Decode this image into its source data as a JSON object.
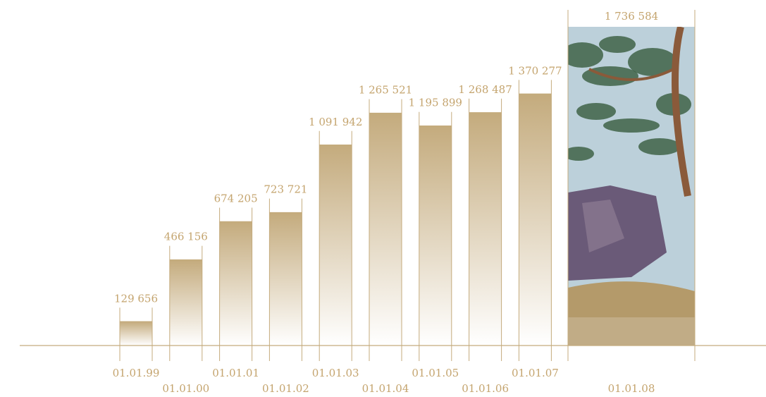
{
  "chart_data": {
    "type": "bar",
    "title": "",
    "xlabel": "",
    "ylabel": "",
    "categories": [
      "01.01.99",
      "01.01.00",
      "01.01.01",
      "01.01.02",
      "01.01.03",
      "01.01.04",
      "01.01.05",
      "01.01.06",
      "01.01.07",
      "01.01.08"
    ],
    "values": [
      129656,
      466156,
      674205,
      723721,
      1091942,
      1265521,
      1195899,
      1268487,
      1370277,
      1736584
    ],
    "value_labels": [
      "129 656",
      "466 156",
      "674 205",
      "723 721",
      "1 091 942",
      "1 265 521",
      "1 195 899",
      "1 268 487",
      "1 370 277",
      "1 736 584"
    ],
    "ylim": [
      0,
      1736584
    ],
    "grid": false,
    "legend": "none",
    "colors": {
      "bar_top": "#c4ab7d",
      "bar_bottom": "#ffffff",
      "axis": "#c4ab7d",
      "text": "#c4a46e",
      "painting_sky": "#bcd0da",
      "painting_leaves": "#2f5433",
      "painting_branch": "#8a5a3a",
      "painting_rock": "#6a5a78",
      "painting_ground": "#b49a6a"
    },
    "highlight_bar_fill": "painting"
  }
}
